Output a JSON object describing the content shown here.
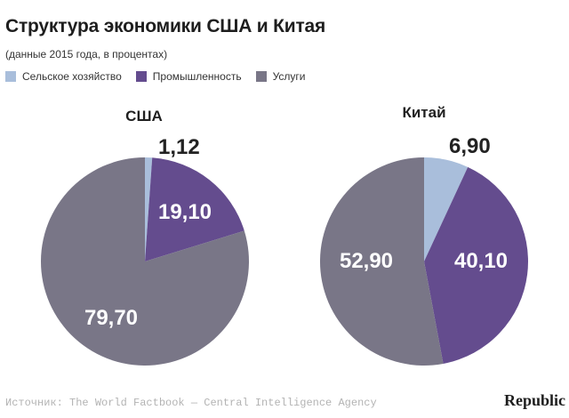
{
  "title": "Структура экономики США и Китая",
  "subtitle": "(данные 2015 года, в процентах)",
  "legend": [
    {
      "label": "Сельское хозяйство",
      "color": "#a9bedb"
    },
    {
      "label": "Промышленность",
      "color": "#644c8e"
    },
    {
      "label": "Услуги",
      "color": "#797687"
    }
  ],
  "chart_data": [
    {
      "type": "pie",
      "title": "США",
      "slices": [
        {
          "label": "Сельское хозяйство",
          "value": 1.12,
          "display": "1,12",
          "color": "#a9bedb"
        },
        {
          "label": "Промышленность",
          "value": 19.1,
          "display": "19,10",
          "color": "#644c8e"
        },
        {
          "label": "Услуги",
          "value": 79.7,
          "display": "79,70",
          "color": "#797687"
        }
      ]
    },
    {
      "type": "pie",
      "title": "Китай",
      "slices": [
        {
          "label": "Сельское хозяйство",
          "value": 6.9,
          "display": "6,90",
          "color": "#a9bedb"
        },
        {
          "label": "Промышленность",
          "value": 40.1,
          "display": "40,10",
          "color": "#644c8e"
        },
        {
          "label": "Услуги",
          "value": 52.9,
          "display": "52,90",
          "color": "#797687"
        }
      ]
    }
  ],
  "source": "Источник: The World Factbook — Central Intelligence Agency",
  "brand": "Republic"
}
